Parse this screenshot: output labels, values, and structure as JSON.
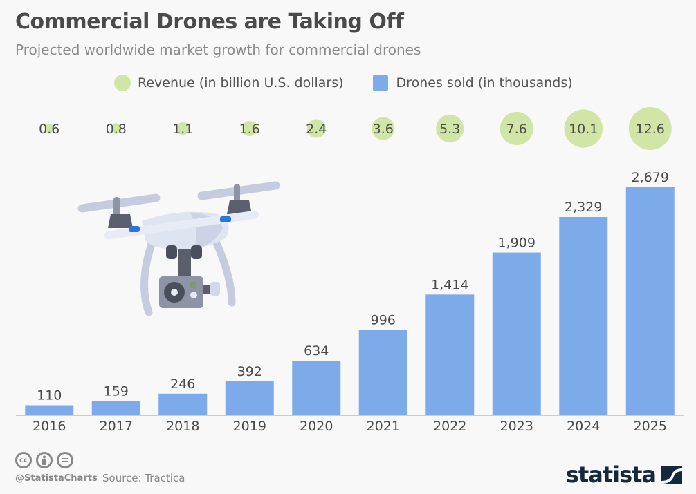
{
  "title": "Commercial Drones are Taking Off",
  "subtitle": "Projected worldwide market growth for commercial drones",
  "legend": {
    "revenue": "Revenue (in billion U.S. dollars)",
    "drones": "Drones sold (in thousands)"
  },
  "colors": {
    "bar": "#7daae8",
    "bubble": "#d1e5a6",
    "text": "#4a4a4a",
    "axis": "#cccccc",
    "brand": "#14293c"
  },
  "footer": {
    "handle": "@StatistaCharts",
    "source": "Source: Tractica",
    "brand": "statista",
    "license_icons": [
      "cc-icon",
      "by-icon",
      "nd-icon"
    ]
  },
  "illustration": "drone-icon",
  "chart_data": {
    "type": "bar",
    "title": "Commercial Drones are Taking Off",
    "subtitle": "Projected worldwide market growth for commercial drones",
    "categories": [
      "2016",
      "2017",
      "2018",
      "2019",
      "2020",
      "2021",
      "2022",
      "2023",
      "2024",
      "2025"
    ],
    "series": [
      {
        "name": "Drones sold (in thousands)",
        "kind": "bar",
        "values": [
          110,
          159,
          246,
          392,
          634,
          996,
          1414,
          1909,
          2329,
          2679
        ],
        "labels": [
          "110",
          "159",
          "246",
          "392",
          "634",
          "996",
          "1,414",
          "1,909",
          "2,329",
          "2,679"
        ]
      },
      {
        "name": "Revenue (in billion U.S. dollars)",
        "kind": "bubble",
        "values": [
          0.6,
          0.8,
          1.1,
          1.6,
          2.4,
          3.6,
          5.3,
          7.6,
          10.1,
          12.6
        ],
        "labels": [
          "0.6",
          "0.8",
          "1.1",
          "1.6",
          "2.4",
          "3.6",
          "5.3",
          "7.6",
          "10.1",
          "12.6"
        ]
      }
    ],
    "xlabel": "",
    "ylabel": "",
    "ylim": [
      0,
      2679
    ],
    "grid": false,
    "legend_position": "top"
  }
}
